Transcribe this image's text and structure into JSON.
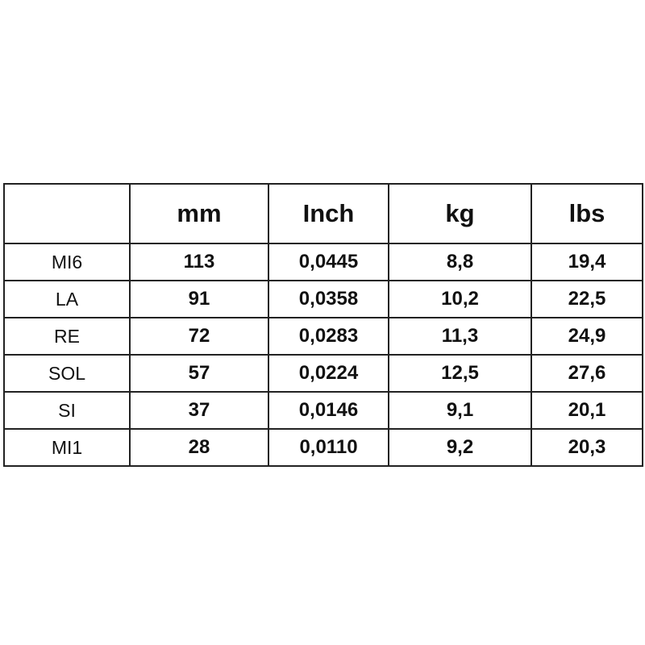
{
  "table": {
    "headers": [
      "",
      "mm",
      "Inch",
      "kg",
      "lbs"
    ],
    "rows": [
      [
        "MI6",
        "113",
        "0,0445",
        "8,8",
        "19,4"
      ],
      [
        "LA",
        "91",
        "0,0358",
        "10,2",
        "22,5"
      ],
      [
        "RE",
        "72",
        "0,0283",
        "11,3",
        "24,9"
      ],
      [
        "SOL",
        "57",
        "0,0224",
        "12,5",
        "27,6"
      ],
      [
        "SI",
        "37",
        "0,0146",
        "9,1",
        "20,1"
      ],
      [
        "MI1",
        "28",
        "0,0110",
        "9,2",
        "20,3"
      ]
    ]
  }
}
